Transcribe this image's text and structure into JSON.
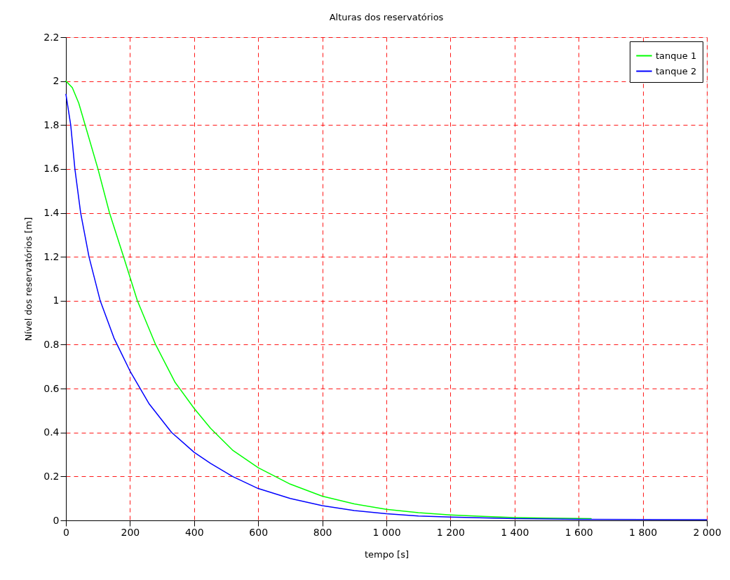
{
  "chart_data": {
    "type": "line",
    "title": "Alturas dos reservatórios",
    "xlabel": "tempo [s]",
    "ylabel": "Nível dos reservatórios [m]",
    "xlim": [
      0,
      2000
    ],
    "ylim": [
      0,
      2.2
    ],
    "xticks": [
      0,
      200,
      400,
      600,
      800,
      {
        "value": 1000,
        "label": "1 000"
      },
      {
        "value": 1200,
        "label": "1 200"
      },
      {
        "value": 1400,
        "label": "1 400"
      },
      {
        "value": 1600,
        "label": "1 600"
      },
      {
        "value": 1800,
        "label": "1 800"
      },
      {
        "value": 2000,
        "label": "2 000"
      }
    ],
    "yticks": [
      0,
      0.2,
      0.4,
      0.6,
      0.8,
      1,
      1.2,
      1.4,
      1.6,
      1.8,
      2,
      2.2
    ],
    "grid": true,
    "legend": "top right",
    "marker": "none",
    "line_style": "solid",
    "series": [
      {
        "name": "tanque 1",
        "color": "#00ff00",
        "x": [
          0,
          20,
          40,
          60,
          100,
          136,
          180,
          223,
          280,
          340,
          400,
          451,
          520,
          600,
          700,
          800,
          900,
          1000,
          1100,
          1200,
          1300,
          1400,
          1500,
          1639
        ],
        "values": [
          2.0,
          1.97,
          1.9,
          1.8,
          1.6,
          1.4,
          1.2,
          1.0,
          0.8,
          0.63,
          0.51,
          0.42,
          0.32,
          0.24,
          0.165,
          0.11,
          0.075,
          0.05,
          0.035,
          0.025,
          0.018,
          0.013,
          0.01,
          0.008
        ]
      },
      {
        "name": "tanque 2",
        "color": "#0000ff",
        "x": [
          0,
          15,
          28,
          46,
          72,
          107,
          150,
          200,
          260,
          330,
          400,
          451,
          520,
          600,
          700,
          800,
          900,
          1000,
          1100,
          1200,
          1400,
          1600,
          1800,
          2000
        ],
        "values": [
          1.94,
          1.8,
          1.6,
          1.4,
          1.2,
          1.0,
          0.83,
          0.68,
          0.53,
          0.4,
          0.31,
          0.26,
          0.2,
          0.145,
          0.1,
          0.067,
          0.045,
          0.03,
          0.02,
          0.015,
          0.008,
          0.005,
          0.004,
          0.003
        ]
      }
    ]
  }
}
